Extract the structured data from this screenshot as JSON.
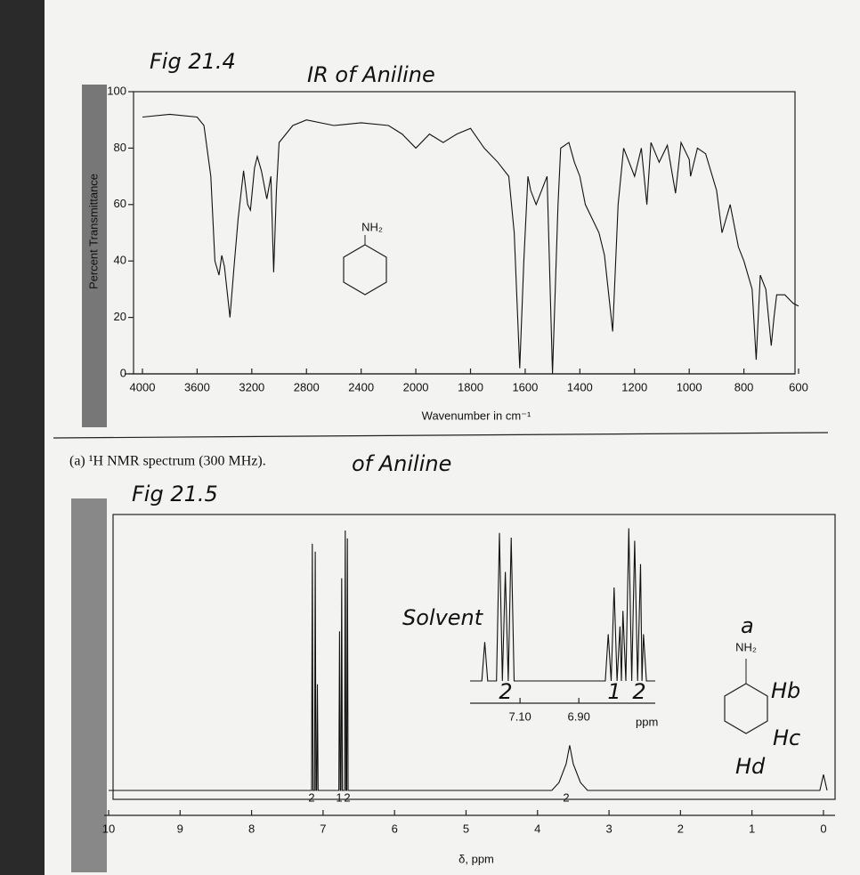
{
  "chart_data": [
    {
      "type": "line",
      "title": "Fig 21.4",
      "subtitle": "IR of Aniline",
      "ylabel": "Percent Transmittance",
      "xlabel": "Wavenumber in cm⁻¹",
      "annotations": [
        "NH₂"
      ],
      "x_scale": "split",
      "x": [
        4000,
        3800,
        3600,
        3550,
        3500,
        3470,
        3440,
        3420,
        3400,
        3360,
        3330,
        3300,
        3260,
        3230,
        3210,
        3180,
        3160,
        3130,
        3090,
        3060,
        3040,
        3020,
        3000,
        2900,
        2800,
        2600,
        2400,
        2200,
        2100,
        2000,
        1950,
        1900,
        1850,
        1800,
        1750,
        1700,
        1660,
        1640,
        1620,
        1605,
        1590,
        1580,
        1560,
        1520,
        1500,
        1480,
        1470,
        1440,
        1420,
        1400,
        1380,
        1330,
        1310,
        1280,
        1260,
        1240,
        1200,
        1175,
        1155,
        1140,
        1110,
        1080,
        1050,
        1030,
        1000,
        995,
        970,
        940,
        900,
        880,
        850,
        820,
        800,
        770,
        755,
        740,
        720,
        700,
        690,
        680,
        650,
        620,
        600
      ],
      "series": [
        {
          "name": "IR spectrum",
          "color": "#111111",
          "values": [
            91,
            92,
            91,
            88,
            70,
            40,
            35,
            42,
            38,
            20,
            38,
            55,
            72,
            60,
            58,
            73,
            77,
            72,
            62,
            70,
            36,
            65,
            82,
            88,
            90,
            88,
            89,
            88,
            85,
            80,
            85,
            82,
            85,
            87,
            80,
            75,
            70,
            50,
            2,
            40,
            70,
            65,
            60,
            70,
            0,
            60,
            80,
            82,
            75,
            70,
            60,
            50,
            42,
            15,
            60,
            80,
            70,
            80,
            60,
            82,
            75,
            81,
            64,
            82,
            76,
            70,
            80,
            78,
            65,
            50,
            60,
            45,
            40,
            30,
            5,
            35,
            30,
            10,
            20,
            28,
            28,
            25,
            24
          ]
        }
      ],
      "xlim": [
        4000,
        600
      ],
      "xticks": [
        4000,
        3600,
        3200,
        2800,
        2400,
        2000,
        1800,
        1600,
        1400,
        1200,
        1000,
        800,
        600
      ],
      "ylim": [
        0,
        100
      ],
      "yticks": [
        0,
        20,
        40,
        60,
        80,
        100
      ]
    },
    {
      "type": "line",
      "title": "Fig 21.5",
      "caption": "(a) ¹H NMR spectrum (300 MHz).",
      "subtitle": "of Aniline",
      "xlabel": "δ, ppm",
      "annotations": [
        "2",
        "1",
        "2",
        "2",
        "a",
        "NH₂",
        "Hb",
        "Hc",
        "Hd"
      ],
      "x": [
        10,
        7.3,
        7.16,
        7.15,
        7.14,
        7.12,
        7.11,
        7.1,
        7.09,
        7.08,
        7.07,
        6.85,
        6.78,
        6.77,
        6.76,
        6.75,
        6.74,
        6.73,
        6.7,
        6.69,
        6.68,
        6.67,
        6.66,
        6.65,
        6.64,
        3.8,
        3.7,
        3.6,
        3.55,
        3.5,
        3.4,
        3.3,
        0.05,
        0,
        -0.05
      ],
      "series": [
        {
          "name": "NMR spectrum",
          "color": "#111111",
          "values": [
            0,
            0,
            0,
            93,
            0,
            0,
            90,
            0,
            0,
            40,
            0,
            0,
            0,
            60,
            0,
            0,
            80,
            0,
            0,
            98,
            0,
            0,
            95,
            0,
            0,
            0,
            3,
            10,
            17,
            10,
            3,
            0,
            0,
            6,
            0
          ]
        }
      ],
      "xlim": [
        10,
        -0.15
      ],
      "xticks": [
        10,
        9,
        8,
        7,
        6,
        5,
        4,
        3,
        2,
        1,
        0
      ],
      "ylim": [
        0,
        100
      ]
    },
    {
      "type": "line",
      "xlabel": "ppm",
      "annotations": [
        "Solvent",
        "2",
        "1",
        "2"
      ],
      "x": [
        7.27,
        7.23,
        7.22,
        7.21,
        7.18,
        7.17,
        7.16,
        7.15,
        7.14,
        7.13,
        7.12,
        6.81,
        6.8,
        6.79,
        6.78,
        6.77,
        6.76,
        6.755,
        6.75,
        6.74,
        6.73,
        6.72,
        6.71,
        6.7,
        6.69,
        6.685,
        6.68,
        6.67,
        6.64
      ],
      "series": [
        {
          "name": "NMR inset",
          "color": "#111111",
          "values": [
            0,
            0,
            25,
            0,
            0,
            95,
            0,
            70,
            0,
            92,
            0,
            0,
            30,
            0,
            60,
            0,
            35,
            0,
            45,
            0,
            98,
            0,
            90,
            0,
            75,
            0,
            30,
            0,
            0
          ]
        }
      ],
      "xlim": [
        7.27,
        6.64
      ],
      "xticks": [
        {
          "value": 7.1,
          "label": "7.10"
        },
        {
          "value": 6.9,
          "label": "6.90"
        }
      ],
      "ylim": [
        0,
        100
      ]
    }
  ]
}
